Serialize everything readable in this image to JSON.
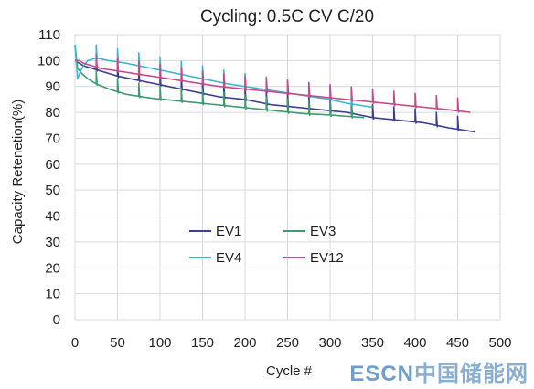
{
  "chart_data": {
    "type": "line",
    "title": "Cycling: 0.5C CV C/20",
    "xlabel": "Cycle #",
    "ylabel": "Capacity Reteneti‌on(%)",
    "xlim": [
      0,
      500
    ],
    "ylim": [
      0,
      110
    ],
    "xticks": [
      "0",
      "50",
      "100",
      "150",
      "200",
      "250",
      "300",
      "350",
      "400",
      "450",
      "500"
    ],
    "yticks": [
      "0",
      "10",
      "20",
      "30",
      "40",
      "50",
      "60",
      "70",
      "80",
      "90",
      "100",
      "110"
    ],
    "grid": true,
    "legend_position": "center-left",
    "series": [
      {
        "name": "EV1",
        "color": "#3d3f8f",
        "x": [
          0,
          5,
          10,
          20,
          30,
          50,
          80,
          110,
          140,
          170,
          200,
          230,
          260,
          290,
          320,
          350,
          380,
          410,
          440,
          470
        ],
        "y": [
          100,
          99,
          98,
          97,
          96,
          94,
          92,
          90,
          88,
          86,
          85,
          83,
          82,
          81,
          80,
          78,
          77,
          76,
          74,
          72.5
        ]
      },
      {
        "name": "EV3",
        "color": "#3f9a6e",
        "x": [
          0,
          3,
          8,
          15,
          25,
          40,
          60,
          90,
          120,
          150,
          180,
          210,
          240,
          270,
          300,
          320,
          340
        ],
        "y": [
          106,
          97,
          95,
          93,
          91,
          89,
          87,
          85.5,
          84.5,
          83.5,
          82.5,
          81.5,
          80.5,
          79.5,
          79,
          78.5,
          78
        ]
      },
      {
        "name": "EV4",
        "color": "#3fb6cf",
        "x": [
          0,
          3,
          8,
          15,
          25,
          40,
          60,
          90,
          120,
          150,
          180,
          210,
          240,
          270,
          300,
          320,
          350
        ],
        "y": [
          106,
          93,
          97,
          100,
          101,
          100,
          99,
          97,
          95,
          93,
          91,
          89.5,
          88,
          86.5,
          85,
          83.5,
          82
        ]
      },
      {
        "name": "EV12",
        "color": "#c64a8a",
        "x": [
          0,
          5,
          10,
          20,
          30,
          50,
          80,
          110,
          140,
          170,
          200,
          230,
          260,
          290,
          320,
          350,
          380,
          410,
          440,
          465
        ],
        "y": [
          100,
          100,
          99,
          98,
          97,
          96,
          94.5,
          93,
          91.5,
          90,
          89,
          88,
          87,
          86,
          85,
          84,
          83,
          82,
          81,
          80
        ]
      }
    ],
    "spike_cycles": [
      25,
      50,
      75,
      100,
      125,
      150,
      175,
      200,
      225,
      250,
      275,
      300,
      325,
      350,
      375,
      400,
      425,
      450
    ]
  },
  "watermark": {
    "latin": "ESCN",
    "cjk": "中国储能网"
  }
}
